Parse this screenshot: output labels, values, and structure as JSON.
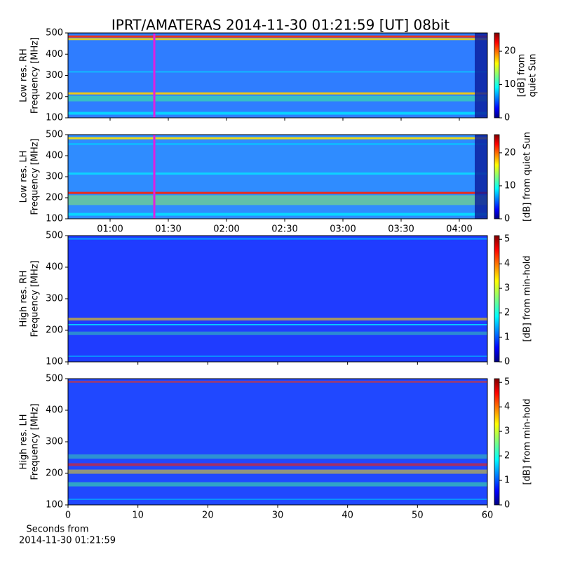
{
  "title": "IPRT/AMATERAS 2014-11-30 01:21:59 [UT]   08bit",
  "chart_data": [
    {
      "type": "heatmap",
      "ylabel": [
        "Low res. RH",
        "Frequency [MHz]"
      ],
      "ylim": [
        100,
        500
      ],
      "yticks": [
        100,
        200,
        300,
        400,
        500
      ],
      "colorbar": {
        "label": [
          "[dB] from",
          "quiet Sun"
        ],
        "lim": [
          0,
          25.5
        ],
        "ticks": [
          0,
          10,
          20
        ]
      }
    },
    {
      "type": "heatmap",
      "ylabel": [
        "Low res. LH",
        "Frequency [MHz]"
      ],
      "ylim": [
        100,
        500
      ],
      "yticks": [
        100,
        200,
        300,
        400,
        500
      ],
      "xticks": [
        "01:00",
        "01:30",
        "02:00",
        "02:30",
        "03:00",
        "03:30",
        "04:00"
      ],
      "colorbar": {
        "label": [
          "[dB] from quiet Sun"
        ],
        "lim": [
          0,
          25.5
        ],
        "ticks": [
          0,
          10,
          20
        ]
      }
    },
    {
      "type": "heatmap",
      "ylabel": [
        "High res. RH",
        "Frequency [MHz]"
      ],
      "ylim": [
        100,
        500
      ],
      "yticks": [
        100,
        200,
        300,
        400,
        500
      ],
      "colorbar": {
        "label": [
          "[dB] from min-hold"
        ],
        "lim": [
          0,
          5.15
        ],
        "ticks": [
          0,
          1,
          2,
          3,
          4,
          5
        ]
      }
    },
    {
      "type": "heatmap",
      "ylabel": [
        "High res. LH",
        "Frequency [MHz]"
      ],
      "ylim": [
        100,
        500
      ],
      "yticks": [
        100,
        200,
        300,
        400,
        500
      ],
      "xlim": [
        0,
        60
      ],
      "xticks": [
        0,
        10,
        20,
        30,
        40,
        50,
        60
      ],
      "xlabel": [
        "Seconds from",
        "2014-11-30 01:21:59"
      ],
      "colorbar": {
        "label": [
          "[dB] from min-hold"
        ],
        "lim": [
          0,
          5.15
        ],
        "ticks": [
          0,
          1,
          2,
          3,
          4,
          5
        ]
      }
    }
  ]
}
